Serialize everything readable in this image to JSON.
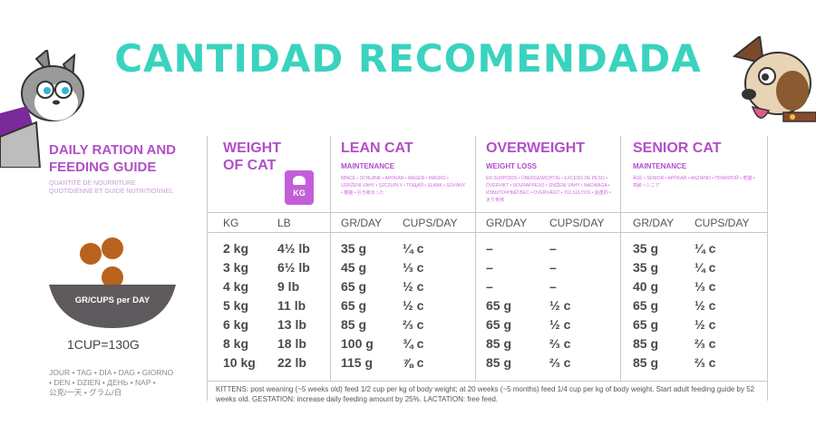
{
  "banner": {
    "title": "CANTIDAD RECOMENDADA"
  },
  "guide": {
    "title_line1": "DAILY RATION AND",
    "title_line2": "FEEDING GUIDE",
    "sub_line1": "QUANTITÉ DE NOURRITURE",
    "sub_line2": "QUOTIDIENNE ET GUIDE NUTRITIONNEL",
    "bowl_label": "GR/CUPS per DAY",
    "cup_note": "1CUP=130G",
    "per_day_line1": "JOUR • TAG • DÍA • DAG • GIORNO",
    "per_day_line2": "• DEN • DZIEŃ • ДЕНЬ • NAP •",
    "per_day_line3": "公克/一天 • グラム/日"
  },
  "columns": {
    "weight": {
      "title_line1": "WEIGHT",
      "title_line2": "OF CAT",
      "badge": "KG",
      "sub1": "KG",
      "sub2": "LB"
    },
    "lean": {
      "title": "LEAN CAT",
      "subtitle": "MAINTENANCE",
      "small": "MINCE • SCHLANK • APOKAR • MAGER • MAGRO • UDRŽENÍ VÁHY • SZCZUPŁY • ТОЩИЙ • SLANK • SOVÁNY • 瘦貓 • 引き締まった",
      "sub1": "GR/DAY",
      "sub2": "CUPS/DAY"
    },
    "overweight": {
      "title": "OVERWEIGHT",
      "subtitle": "WEIGHT LOSS",
      "small": "EN SURPOIDS • ÜBERGEWICHTIG • EXCESO DE PESO • ÖVERVIKT • SOVRAPPESO • SNÍŽENÍ VÁHY • NADWAGA • ИЗБЫТОЧНЫЙ ВЕС • OVERVÆGT • TÚLSÚLYOS • 過重的 • 太り気味",
      "sub1": "GR/DAY",
      "sub2": "CUPS/DAY"
    },
    "senior": {
      "title": "SENIOR CAT",
      "subtitle": "MAINTENANCE",
      "small": "ÂGÉ • SENIOR • APOKAR • ANZIANO • ПОЖИЛОЙ • 老貓 • 高齢 • シニア",
      "sub1": "GR/DAY",
      "sub2": "CUPS/DAY"
    }
  },
  "rows": [
    {
      "kg": "2 kg",
      "lb": "4½ lb",
      "lean_gr": "35 g",
      "lean_cups": "¼ c",
      "ow_gr": "–",
      "ow_cups": "–",
      "sr_gr": "35 g",
      "sr_cups": "¼ c"
    },
    {
      "kg": "3 kg",
      "lb": "6½ lb",
      "lean_gr": "45 g",
      "lean_cups": "⅓ c",
      "ow_gr": "–",
      "ow_cups": "–",
      "sr_gr": "35 g",
      "sr_cups": "¼ c"
    },
    {
      "kg": "4 kg",
      "lb": "9 lb",
      "lean_gr": "65 g",
      "lean_cups": "½ c",
      "ow_gr": "–",
      "ow_cups": "–",
      "sr_gr": "40 g",
      "sr_cups": "⅓ c"
    },
    {
      "kg": "5 kg",
      "lb": "11 lb",
      "lean_gr": "65 g",
      "lean_cups": "½ c",
      "ow_gr": "65 g",
      "ow_cups": "½ c",
      "sr_gr": "65 g",
      "sr_cups": "½ c"
    },
    {
      "kg": "6 kg",
      "lb": "13 lb",
      "lean_gr": "85 g",
      "lean_cups": "⅔ c",
      "ow_gr": "65 g",
      "ow_cups": "½ c",
      "sr_gr": "65 g",
      "sr_cups": "½ c"
    },
    {
      "kg": "8 kg",
      "lb": "18 lb",
      "lean_gr": "100 g",
      "lean_cups": "¾ c",
      "ow_gr": "85 g",
      "ow_cups": "⅔ c",
      "sr_gr": "85 g",
      "sr_cups": "⅔ c"
    },
    {
      "kg": "10 kg",
      "lb": "22 lb",
      "lean_gr": "115 g",
      "lean_cups": "⅞ c",
      "ow_gr": "85 g",
      "ow_cups": "⅔ c",
      "sr_gr": "85 g",
      "sr_cups": "⅔ c"
    }
  ],
  "footnote": "KITTENS: post weaning (~5 weeks old) feed 1/2 cup per kg of body weight; at 20 weeks (~5 months) feed 1/4 cup per kg of body weight. Start adult feeding guide by 52 weeks old. GESTATION: increase daily feeding amount by 25%. LACTATION: free feed.",
  "colors": {
    "banner": "#39d3bf",
    "accent": "#b24fc7",
    "badge": "#c25fd8"
  }
}
